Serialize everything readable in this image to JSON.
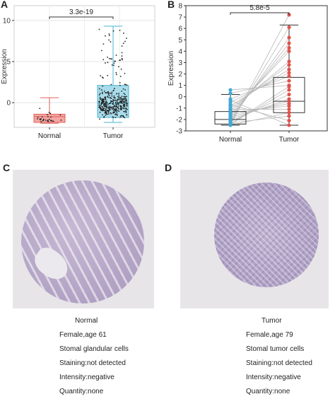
{
  "panels": {
    "a": {
      "label": "A",
      "p_value": "3.3e-19",
      "ylabel": "Expression"
    },
    "b": {
      "label": "B",
      "p_value": "5.8e-5",
      "ylabel": "Expression"
    },
    "c": {
      "label": "C",
      "title": "Normal",
      "lines": [
        "Female,age 61",
        "Stomal glandular cells",
        "Staining:not detected",
        "Intensity:negative",
        "Quantity:none"
      ]
    },
    "d": {
      "label": "D",
      "title": "Tumor",
      "lines": [
        "Female,age 79",
        "Stomal tumor cells",
        "Staining:not detected",
        "Intensity:negative",
        "Quantity:none"
      ]
    }
  },
  "colors": {
    "normal_box": "#f4a6a2",
    "normal_edge": "#e0605a",
    "tumor_box": "#a8dceb",
    "tumor_edge": "#4bb4d0",
    "normal_point": "#3fa9d6",
    "tumor_point": "#e0524a",
    "pair_line": "#b8b8b8",
    "tissue": "#b7a9c8",
    "tma_background": "#e7e5e8"
  },
  "chart_data": [
    {
      "type": "box",
      "panel": "A",
      "categories": [
        "Normal",
        "Tumor"
      ],
      "yticks": [
        0,
        5,
        10
      ],
      "ylim": [
        -3,
        11.8
      ],
      "ylabel": "Expression",
      "grid": true,
      "annotation": "3.3e-19",
      "boxes": [
        {
          "name": "Normal",
          "whisker_low": -2.5,
          "q1": -2.4,
          "median": -1.7,
          "q3": -1.4,
          "whisker_high": 0.6
        },
        {
          "name": "Tumor",
          "whisker_low": -2.4,
          "q1": -1.8,
          "median": -0.1,
          "q3": 2.1,
          "whisker_high": 9.3
        }
      ]
    },
    {
      "type": "paired_box",
      "panel": "B",
      "categories": [
        "Normal",
        "Tumor"
      ],
      "yticks": [
        -3,
        -2,
        -1,
        0,
        1,
        2,
        3,
        4,
        5,
        6,
        7,
        8
      ],
      "ylim": [
        -3,
        8
      ],
      "ylabel": "Expression",
      "grid": false,
      "annotation": "5.8e-5",
      "boxes": [
        {
          "name": "Normal",
          "whisker_low": -2.5,
          "q1": -2.4,
          "median": -2.0,
          "q3": -1.3,
          "whisker_high": 0.2
        },
        {
          "name": "Tumor",
          "whisker_low": -2.5,
          "q1": -1.4,
          "median": -0.4,
          "q3": 1.7,
          "whisker_high": 6.3
        }
      ],
      "pairs": [
        [
          -2.5,
          7.2
        ],
        [
          -2.3,
          6.1
        ],
        [
          -2.1,
          5.2
        ],
        [
          -1.9,
          4.7
        ],
        [
          -1.7,
          4.3
        ],
        [
          -1.5,
          4.0
        ],
        [
          -1.2,
          3.1
        ],
        [
          -1.0,
          2.8
        ],
        [
          -0.8,
          2.4
        ],
        [
          -0.5,
          2.1
        ],
        [
          -0.2,
          1.8
        ],
        [
          0.3,
          1.4
        ],
        [
          0.6,
          1.0
        ],
        [
          -2.4,
          0.6
        ],
        [
          -2.2,
          0.2
        ],
        [
          -2.0,
          -0.2
        ],
        [
          -1.8,
          -0.4
        ],
        [
          -1.6,
          -0.6
        ],
        [
          -1.4,
          -0.8
        ],
        [
          -1.1,
          -1.1
        ],
        [
          -2.5,
          -1.4
        ],
        [
          -2.3,
          -1.7
        ],
        [
          -0.7,
          -2.1
        ],
        [
          -0.3,
          -2.5
        ],
        [
          -2.4,
          0.9
        ]
      ]
    }
  ]
}
